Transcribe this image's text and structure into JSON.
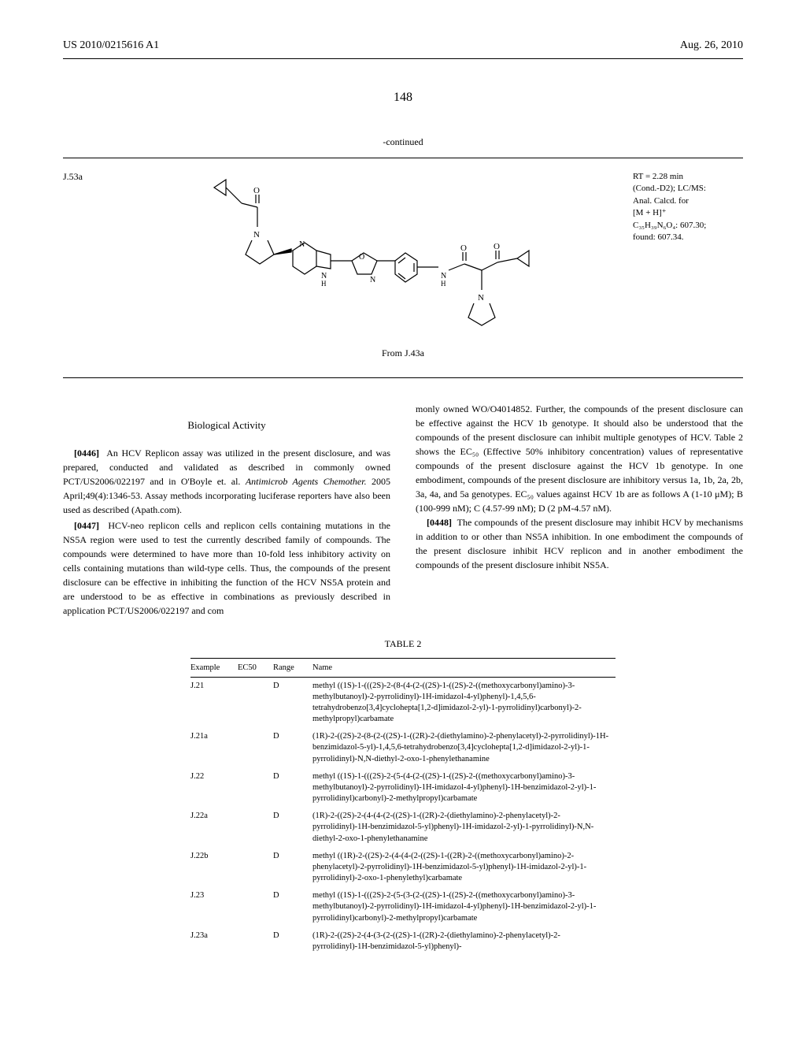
{
  "header": {
    "patent_number": "US 2010/0215616 A1",
    "date": "Aug. 26, 2010",
    "page_number": "148"
  },
  "continued_label": "-continued",
  "structure": {
    "id": "J.53a",
    "caption": "From J.43a",
    "rt_line1": "RT = 2.28 min",
    "rt_line2": "(Cond.-D2); LC/MS:",
    "rt_line3": "Anal. Calcd. for",
    "rt_line4": "[M + H]⁺",
    "rt_line5": "C₃₅H₃₉N₆O₄: 607.30;",
    "rt_line6": "found: 607.34."
  },
  "section_title": "Biological Activity",
  "paragraphs": {
    "p0446_num": "[0446]",
    "p0446": "An HCV Replicon assay was utilized in the present disclosure, and was prepared, conducted and validated as described in commonly owned PCT/US2006/022197 and in O'Boyle et. al. ",
    "p0446_italic": "Antimicrob Agents Chemother.",
    "p0446_cont": " 2005 April;49(4):1346-53. Assay methods incorporating luciferase reporters have also been used as described (Apath.com).",
    "p0447_num": "[0447]",
    "p0447": "HCV-neo replicon cells and replicon cells containing mutations in the NS5A region were used to test the currently described family of compounds. The compounds were determined to have more than 10-fold less inhibitory activity on cells containing mutations than wild-type cells. Thus, the compounds of the present disclosure can be effective in inhibiting the function of the HCV NS5A protein and are understood to be as effective in combinations as previously described in application PCT/US2006/022197 and com",
    "right_col_p1": "monly owned WO/O4014852. Further, the compounds of the present disclosure can be effective against the HCV 1b genotype. It should also be understood that the compounds of the present disclosure can inhibit multiple genotypes of HCV. Table 2 shows the EC₅₀ (Effective 50% inhibitory concentration) values of representative compounds of the present disclosure against the HCV 1b genotype. In one embodiment, compounds of the present disclosure are inhibitory versus 1a, 1b, 2a, 2b, 3a, 4a, and 5a genotypes. EC₅₀ values against HCV 1b are as follows A (1-10 μM); B (100-999 nM); C (4.57-99 nM); D (2 pM-4.57 nM).",
    "p0448_num": "[0448]",
    "p0448": "The compounds of the present disclosure may inhibit HCV by mechanisms in addition to or other than NS5A inhibition. In one embodiment the compounds of the present disclosure inhibit HCV replicon and in another embodiment the compounds of the present disclosure inhibit NS5A."
  },
  "table": {
    "caption": "TABLE 2",
    "columns": [
      "Example",
      "EC50",
      "Range",
      "Name"
    ],
    "rows": [
      {
        "example": "J.21",
        "ec50": "",
        "range": "D",
        "name": "methyl ((1S)-1-(((2S)-2-(8-(4-(2-((2S)-1-((2S)-2-((methoxycarbonyl)amino)-3-methylbutanoyl)-2-pyrrolidinyl)-1H-imidazol-4-yl)phenyl)-1,4,5,6-tetrahydrobenzo[3,4]cyclohepta[1,2-d]imidazol-2-yl)-1-pyrrolidinyl)carbonyl)-2-methylpropyl)carbamate"
      },
      {
        "example": "J.21a",
        "ec50": "",
        "range": "D",
        "name": "(1R)-2-((2S)-2-(8-(2-((2S)-1-((2R)-2-(diethylamino)-2-phenylacetyl)-2-pyrrolidinyl)-1H-benzimidazol-5-yl)-1,4,5,6-tetrahydrobenzo[3,4]cyclohepta[1,2-d]imidazol-2-yl)-1-pyrrolidinyl)-N,N-diethyl-2-oxo-1-phenylethanamine"
      },
      {
        "example": "J.22",
        "ec50": "",
        "range": "D",
        "name": "methyl ((1S)-1-(((2S)-2-(5-(4-(2-((2S)-1-((2S)-2-((methoxycarbonyl)amino)-3-methylbutanoyl)-2-pyrrolidinyl)-1H-imidazol-4-yl)phenyl)-1H-benzimidazol-2-yl)-1-pyrrolidinyl)carbonyl)-2-methylpropyl)carbamate"
      },
      {
        "example": "J.22a",
        "ec50": "",
        "range": "D",
        "name": "(1R)-2-((2S)-2-(4-(4-(2-((2S)-1-((2R)-2-(diethylamino)-2-phenylacetyl)-2-pyrrolidinyl)-1H-benzimidazol-5-yl)phenyl)-1H-imidazol-2-yl)-1-pyrrolidinyl)-N,N-diethyl-2-oxo-1-phenylethanamine"
      },
      {
        "example": "J.22b",
        "ec50": "",
        "range": "D",
        "name": "methyl ((1R)-2-((2S)-2-(4-(4-(2-((2S)-1-((2R)-2-((methoxycarbonyl)amino)-2-phenylacetyl)-2-pyrrolidinyl)-1H-benzimidazol-5-yl)phenyl)-1H-imidazol-2-yl)-1-pyrrolidinyl)-2-oxo-1-phenylethyl)carbamate"
      },
      {
        "example": "J.23",
        "ec50": "",
        "range": "D",
        "name": "methyl ((1S)-1-(((2S)-2-(5-(3-(2-((2S)-1-((2S)-2-((methoxycarbonyl)amino)-3-methylbutanoyl)-2-pyrrolidinyl)-1H-imidazol-4-yl)phenyl)-1H-benzimidazol-2-yl)-1-pyrrolidinyl)carbonyl)-2-methylpropyl)carbamate"
      },
      {
        "example": "J.23a",
        "ec50": "",
        "range": "D",
        "name": "(1R)-2-((2S)-2-(4-(3-(2-((2S)-1-((2R)-2-(diethylamino)-2-phenylacetyl)-2-pyrrolidinyl)-1H-benzimidazol-5-yl)phenyl)-"
      }
    ]
  }
}
